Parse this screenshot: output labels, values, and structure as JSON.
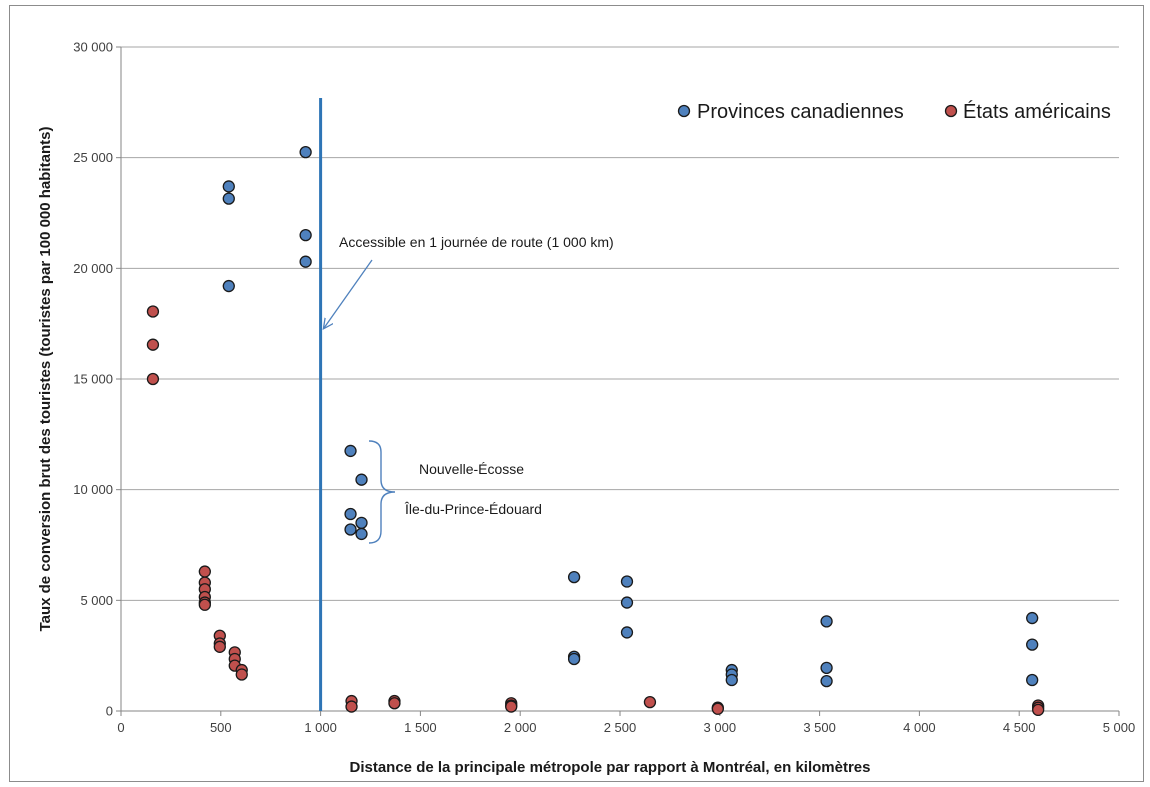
{
  "chart_data": {
    "type": "scatter",
    "title": "",
    "xlabel": "Distance de la principale métropole par rapport à Montréal, en kilomètres",
    "ylabel": "Taux de conversion brut des touristes (touristes par 100 000 habitants)",
    "xlim": [
      0,
      5000
    ],
    "ylim": [
      0,
      30000
    ],
    "x_ticks": [
      0,
      500,
      1000,
      1500,
      2000,
      2500,
      3000,
      3500,
      4000,
      4500,
      5000
    ],
    "x_tick_labels": [
      "0",
      "500",
      "1 000",
      "1 500",
      "2 000",
      "2 500",
      "3 000",
      "3 500",
      "4 000",
      "4 500",
      "5 000"
    ],
    "y_ticks": [
      0,
      5000,
      10000,
      15000,
      20000,
      25000,
      30000
    ],
    "y_tick_labels": [
      "0",
      "5 000",
      "10 000",
      "15 000",
      "20 000",
      "25 000",
      "30 000"
    ],
    "grid": "horizontal",
    "legend_position": "top-right",
    "series": [
      {
        "name": "Provinces canadiennes",
        "color": "#4f81bd",
        "points": [
          [
            540,
            23700
          ],
          [
            540,
            23150
          ],
          [
            540,
            19200
          ],
          [
            925,
            25250
          ],
          [
            925,
            21500
          ],
          [
            925,
            20300
          ],
          [
            1150,
            11750
          ],
          [
            1150,
            8900
          ],
          [
            1150,
            8200
          ],
          [
            1205,
            10450
          ],
          [
            1205,
            8500
          ],
          [
            1205,
            8000
          ],
          [
            2270,
            6050
          ],
          [
            2270,
            2450
          ],
          [
            2270,
            2350
          ],
          [
            2535,
            5850
          ],
          [
            2535,
            4900
          ],
          [
            2535,
            3550
          ],
          [
            3060,
            1850
          ],
          [
            3060,
            1650
          ],
          [
            3060,
            1400
          ],
          [
            3535,
            4050
          ],
          [
            3535,
            1950
          ],
          [
            3535,
            1350
          ],
          [
            4565,
            4200
          ],
          [
            4565,
            3000
          ],
          [
            4565,
            1400
          ]
        ]
      },
      {
        "name": "États américains",
        "color": "#c0504d",
        "points": [
          [
            160,
            18050
          ],
          [
            160,
            16550
          ],
          [
            160,
            15000
          ],
          [
            420,
            6300
          ],
          [
            420,
            5800
          ],
          [
            420,
            5500
          ],
          [
            420,
            5150
          ],
          [
            420,
            4900
          ],
          [
            420,
            4800
          ],
          [
            495,
            3400
          ],
          [
            495,
            3050
          ],
          [
            495,
            2900
          ],
          [
            570,
            2650
          ],
          [
            570,
            2350
          ],
          [
            570,
            2050
          ],
          [
            605,
            1850
          ],
          [
            605,
            1650
          ],
          [
            1155,
            450
          ],
          [
            1155,
            200
          ],
          [
            1370,
            450
          ],
          [
            1370,
            350
          ],
          [
            1955,
            350
          ],
          [
            1955,
            250
          ],
          [
            1955,
            200
          ],
          [
            2650,
            400
          ],
          [
            2990,
            150
          ],
          [
            2990,
            100
          ],
          [
            4595,
            250
          ],
          [
            4595,
            150
          ],
          [
            4595,
            50
          ]
        ]
      }
    ],
    "reference_line": {
      "x": 1000,
      "color": "#2e75b6"
    },
    "annotations": {
      "arrow_label": "Accessible en 1 journée de route (1 000 km)",
      "bracket_label_1": "Nouvelle-Écosse",
      "bracket_label_2": "Île-du-Prince-Édouard"
    }
  }
}
